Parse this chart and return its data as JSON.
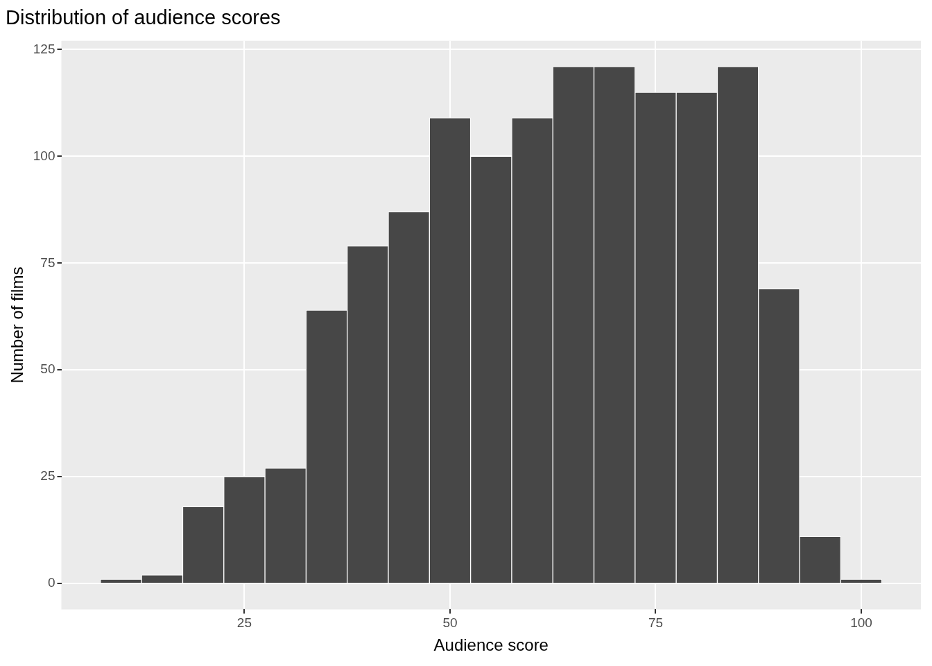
{
  "chart_data": {
    "type": "histogram",
    "title": "Distribution of audience scores",
    "xlabel": "Audience score",
    "ylabel": "Number of films",
    "bins": [
      7.5,
      12.5,
      17.5,
      22.5,
      27.5,
      32.5,
      37.5,
      42.5,
      47.5,
      52.5,
      57.5,
      62.5,
      67.5,
      72.5,
      77.5,
      82.5,
      87.5,
      92.5,
      97.5,
      102.5
    ],
    "values": [
      1,
      2,
      18,
      25,
      27,
      64,
      79,
      87,
      109,
      100,
      109,
      121,
      121,
      115,
      115,
      121,
      69,
      11,
      1
    ],
    "color": "#474747",
    "xlim": [
      2.75,
      107.25
    ],
    "xticks": [
      25,
      50,
      75,
      100
    ],
    "ylim": [
      -6.05,
      127.05
    ],
    "yticks": [
      0,
      25,
      50,
      75,
      100,
      125
    ],
    "grid": true
  }
}
